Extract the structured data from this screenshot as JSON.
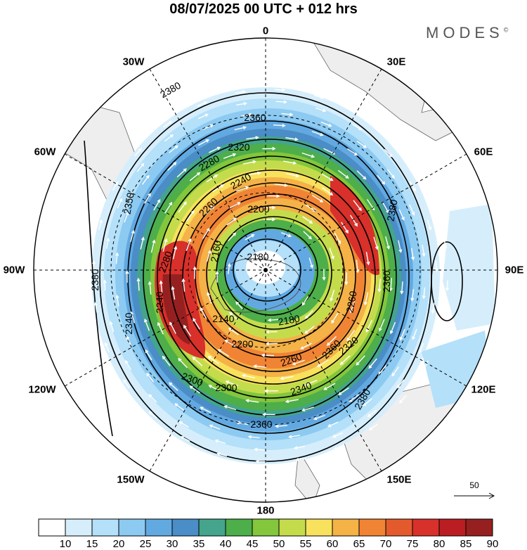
{
  "header": {
    "title": "08/07/2025  00 UTC  + 012 hrs",
    "brand": "MODES"
  },
  "map": {
    "projection": "polar-stereographic-south",
    "longitude_labels": {
      "top": "0",
      "top_right": "30E",
      "right_upper": "60E",
      "right": "90E",
      "right_lower": "120E",
      "bottom_right": "150E",
      "bottom": "180",
      "bottom_left": "150W",
      "left_lower": "120W",
      "left": "90W",
      "left_upper": "60W",
      "top_left": "30W"
    },
    "contour_labels": [
      "2380",
      "2360",
      "2320",
      "2280",
      "2240",
      "2260",
      "2200",
      "2160",
      "2180",
      "2140",
      "2300",
      "2340",
      "2350",
      "2180",
      "2260",
      "2240",
      "2340",
      "2300",
      "2360",
      "2380",
      "2360",
      "2380",
      "2360",
      "2380",
      "2200",
      "2320",
      "2280",
      "2260"
    ],
    "vector_reference_label": "50",
    "colors": {
      "land": "#eeeeee",
      "contour": "#000000",
      "vectors": "#ffffff"
    }
  },
  "colorbar": {
    "tick_labels": [
      "10",
      "15",
      "20",
      "25",
      "30",
      "35",
      "40",
      "45",
      "50",
      "55",
      "60",
      "65",
      "70",
      "75",
      "80",
      "85",
      "90"
    ],
    "colors": [
      "#ffffff",
      "#d6eefc",
      "#b4e0f9",
      "#8ccaf1",
      "#62a9e2",
      "#4a8dc7",
      "#44a48c",
      "#4dae4a",
      "#84c63c",
      "#c4dc4c",
      "#f8e15c",
      "#f4b247",
      "#f08434",
      "#e35a2d",
      "#d8302a",
      "#bb1e22",
      "#962020"
    ]
  }
}
